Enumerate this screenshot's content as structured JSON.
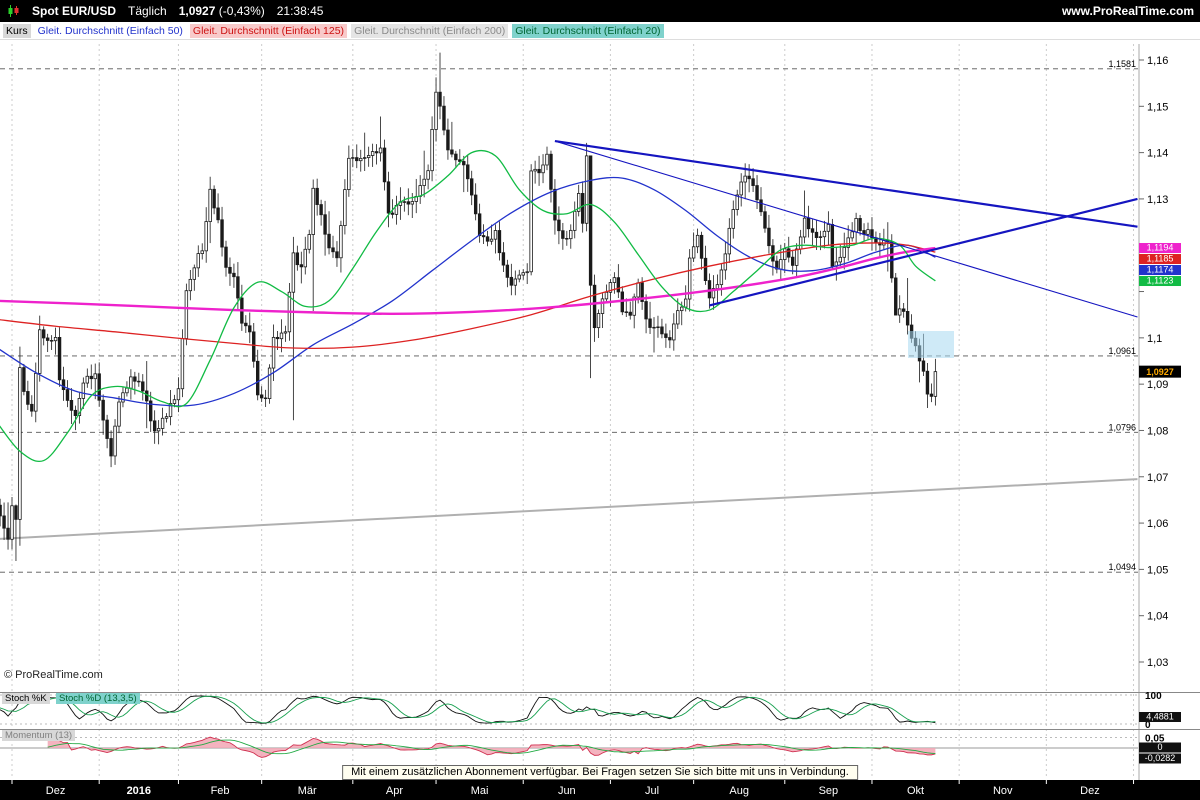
{
  "header": {
    "instrument": "Spot EUR/USD",
    "timeframe": "Täglich",
    "price": "1,0927",
    "change": "(-0,43%)",
    "time": "21:38:45",
    "website": "www.ProRealTime.com"
  },
  "branding": {
    "copyright": "© ProRealTime.com"
  },
  "legend": {
    "kurs": "Kurs",
    "items": [
      {
        "period": 50,
        "label": "Gleit. Durchschnitt (Einfach 50)",
        "color": "#2233cc",
        "bg": "#ffffff"
      },
      {
        "period": 125,
        "label": "Gleit. Durchschnitt (Einfach 125)",
        "color": "#cc1111",
        "bg": "#f8caca"
      },
      {
        "period": 200,
        "label": "Gleit. Durchschnitt (Einfach 200)",
        "color": "#8a8a8a",
        "bg": "#e4e4e4"
      },
      {
        "period": 20,
        "label": "Gleit. Durchschnitt (Einfach 20)",
        "color": "#006633",
        "bg": "#7fd2cc"
      }
    ]
  },
  "panels": {
    "stochastic": {
      "label_k": "Stoch %K",
      "label_d": "Stoch %D (13,3,5)",
      "axis_top": "100",
      "axis_bottom": "0",
      "value": 4.4881,
      "value_label": "4,4881",
      "k_color": "#111111",
      "d_color": "#18a050"
    },
    "momentum": {
      "label": "Momentum (13)",
      "axis_top": "0,05",
      "zero_label": "0",
      "value": -0.0282,
      "value_label": "-0,0282",
      "line_color": "#d03050",
      "fill_color": "#f2a6b4",
      "signal_color": "#22aa44"
    }
  },
  "footer": {
    "message": "Mit einem zusätzlichen Abonnement verfügbar. Bei Fragen setzen Sie sich bitte mit uns in Verbindung."
  },
  "chart_data": {
    "type": "candlestick",
    "title": "Spot EUR/USD Täglich",
    "period": "daily",
    "seed": 42,
    "ylim": [
      1.028,
      1.167
    ],
    "x_axis": {
      "month_start_days": [
        4,
        26,
        46,
        67,
        90,
        111,
        133,
        155,
        176,
        199,
        221,
        243,
        265,
        287
      ],
      "months": [
        {
          "label": "Dez",
          "bold": false
        },
        {
          "label": "2016",
          "bold": true
        },
        {
          "label": "Feb",
          "bold": false
        },
        {
          "label": "Mär",
          "bold": false
        },
        {
          "label": "Apr",
          "bold": false
        },
        {
          "label": "Mai",
          "bold": false
        },
        {
          "label": "Jun",
          "bold": false
        },
        {
          "label": "Jul",
          "bold": false
        },
        {
          "label": "Aug",
          "bold": false
        },
        {
          "label": "Sep",
          "bold": false
        },
        {
          "label": "Okt",
          "bold": false
        },
        {
          "label": "Nov",
          "bold": false
        },
        {
          "label": "Dez",
          "bold": false
        }
      ]
    },
    "y_axis": {
      "visible_labels": [
        {
          "v": 1.16,
          "t": "1,16"
        },
        {
          "v": 1.15,
          "t": "1,15"
        },
        {
          "v": 1.14,
          "t": "1,14"
        },
        {
          "v": 1.13,
          "t": "1,13"
        },
        {
          "v": 1.1,
          "t": "1,1"
        },
        {
          "v": 1.09,
          "t": "1,09"
        },
        {
          "v": 1.08,
          "t": "1,08"
        },
        {
          "v": 1.07,
          "t": "1,07"
        },
        {
          "v": 1.06,
          "t": "1,06"
        },
        {
          "v": 1.05,
          "t": "1,05"
        },
        {
          "v": 1.04,
          "t": "1,04"
        },
        {
          "v": 1.03,
          "t": "1,03"
        }
      ]
    },
    "levels": [
      {
        "price": 1.1581,
        "label": "1,1581"
      },
      {
        "price": 1.0961,
        "label": "1,0961"
      },
      {
        "price": 1.0796,
        "label": "1,0796"
      },
      {
        "price": 1.0494,
        "label": "1,0494"
      }
    ],
    "last_price": {
      "value": 1.0927,
      "label": "1,0927"
    },
    "price_anchors": [
      [
        0,
        1.0637
      ],
      [
        2,
        1.0593
      ],
      [
        3,
        1.0565
      ],
      [
        4,
        1.0632
      ],
      [
        5,
        1.0615
      ],
      [
        6,
        1.0941
      ],
      [
        7,
        1.0885
      ],
      [
        9,
        1.0836
      ],
      [
        11,
        1.1024
      ],
      [
        13,
        1.0988
      ],
      [
        15,
        1.0993
      ],
      [
        16,
        1.0912
      ],
      [
        18,
        1.0866
      ],
      [
        20,
        1.0827
      ],
      [
        22,
        1.0905
      ],
      [
        25,
        1.0927
      ],
      [
        26,
        1.0862
      ],
      [
        27,
        1.083
      ],
      [
        29,
        1.0746
      ],
      [
        31,
        1.086
      ],
      [
        34,
        1.0916
      ],
      [
        37,
        1.089
      ],
      [
        40,
        1.0794
      ],
      [
        43,
        1.0832
      ],
      [
        46,
        1.0889
      ],
      [
        48,
        1.1103
      ],
      [
        50,
        1.1157
      ],
      [
        52,
        1.1195
      ],
      [
        54,
        1.132
      ],
      [
        56,
        1.1254
      ],
      [
        58,
        1.1145
      ],
      [
        60,
        1.1128
      ],
      [
        62,
        1.1029
      ],
      [
        64,
        1.1011
      ],
      [
        66,
        1.0873
      ],
      [
        68,
        1.0866
      ],
      [
        70,
        1.1003
      ],
      [
        73,
        1.1011
      ],
      [
        75,
        1.1179
      ],
      [
        77,
        1.1152
      ],
      [
        79,
        1.1223
      ],
      [
        80,
        1.1317
      ],
      [
        82,
        1.127
      ],
      [
        84,
        1.1187
      ],
      [
        86,
        1.1178
      ],
      [
        88,
        1.132
      ],
      [
        89,
        1.138
      ],
      [
        91,
        1.139
      ],
      [
        93,
        1.1385
      ],
      [
        95,
        1.1401
      ],
      [
        97,
        1.1408
      ],
      [
        99,
        1.1266
      ],
      [
        101,
        1.1283
      ],
      [
        103,
        1.1289
      ],
      [
        105,
        1.1289
      ],
      [
        107,
        1.1333
      ],
      [
        109,
        1.1355
      ],
      [
        110,
        1.1452
      ],
      [
        111,
        1.153
      ],
      [
        112,
        1.1498
      ],
      [
        114,
        1.1403
      ],
      [
        116,
        1.1378
      ],
      [
        118,
        1.1376
      ],
      [
        120,
        1.1307
      ],
      [
        122,
        1.1222
      ],
      [
        124,
        1.1202
      ],
      [
        126,
        1.1224
      ],
      [
        128,
        1.115
      ],
      [
        130,
        1.1113
      ],
      [
        132,
        1.1137
      ],
      [
        134,
        1.115
      ],
      [
        135,
        1.1365
      ],
      [
        137,
        1.1359
      ],
      [
        139,
        1.1398
      ],
      [
        141,
        1.1254
      ],
      [
        143,
        1.1208
      ],
      [
        145,
        1.1226
      ],
      [
        147,
        1.1313
      ],
      [
        148,
        1.125
      ],
      [
        149,
        1.1385
      ],
      [
        150,
        1.1117
      ],
      [
        151,
        1.1024
      ],
      [
        154,
        1.1106
      ],
      [
        156,
        1.1136
      ],
      [
        158,
        1.1051
      ],
      [
        160,
        1.1046
      ],
      [
        162,
        1.1121
      ],
      [
        164,
        1.1034
      ],
      [
        166,
        1.1022
      ],
      [
        168,
        1.1013
      ],
      [
        170,
        1.0997
      ],
      [
        172,
        1.1059
      ],
      [
        174,
        1.1077
      ],
      [
        175,
        1.1176
      ],
      [
        177,
        1.1222
      ],
      [
        179,
        1.1131
      ],
      [
        180,
        1.1087
      ],
      [
        182,
        1.1117
      ],
      [
        184,
        1.1179
      ],
      [
        186,
        1.1281
      ],
      [
        189,
        1.1353
      ],
      [
        191,
        1.1327
      ],
      [
        193,
        1.1265
      ],
      [
        195,
        1.1198
      ],
      [
        197,
        1.1148
      ],
      [
        199,
        1.1197
      ],
      [
        201,
        1.1155
      ],
      [
        204,
        1.1258
      ],
      [
        206,
        1.1227
      ],
      [
        208,
        1.1222
      ],
      [
        210,
        1.1245
      ],
      [
        211,
        1.1157
      ],
      [
        213,
        1.1178
      ],
      [
        215,
        1.1208
      ],
      [
        217,
        1.1254
      ],
      [
        219,
        1.1216
      ],
      [
        220,
        1.1238
      ],
      [
        221,
        1.1213
      ],
      [
        223,
        1.1206
      ],
      [
        225,
        1.1201
      ],
      [
        227,
        1.1054
      ],
      [
        229,
        1.1057
      ],
      [
        231,
        1.0999
      ],
      [
        234,
        1.0928
      ],
      [
        235,
        1.0883
      ],
      [
        236,
        1.0875
      ],
      [
        237,
        1.0927
      ]
    ],
    "wide_range_days": [
      [
        5,
        1.064,
        1.0518
      ],
      [
        6,
        1.0981,
        1.0551
      ],
      [
        75,
        1.1218,
        1.0822
      ],
      [
        80,
        1.1342,
        1.1058
      ],
      [
        112,
        1.1616,
        1.1472
      ],
      [
        135,
        1.1375,
        1.1135
      ],
      [
        149,
        1.1421,
        1.123
      ],
      [
        150,
        1.1379,
        1.0913
      ],
      [
        227,
        1.114,
        1.1049
      ]
    ],
    "moving_averages": [
      {
        "period": 50,
        "name": "SMA 50",
        "color": "#2233cc",
        "width": 1.3,
        "value": 1.1174,
        "value_label": "1,1174",
        "points": [
          [
            0,
            1.098
          ],
          [
            10,
            1.0925
          ],
          [
            20,
            1.0885
          ],
          [
            30,
            1.087
          ],
          [
            40,
            1.0856
          ],
          [
            50,
            1.0855
          ],
          [
            60,
            1.088
          ],
          [
            70,
            1.0925
          ],
          [
            80,
            1.0985
          ],
          [
            90,
            1.103
          ],
          [
            100,
            1.108
          ],
          [
            110,
            1.1145
          ],
          [
            120,
            1.121
          ],
          [
            130,
            1.127
          ],
          [
            140,
            1.1315
          ],
          [
            150,
            1.134
          ],
          [
            158,
            1.1345
          ],
          [
            166,
            1.132
          ],
          [
            174,
            1.1275
          ],
          [
            182,
            1.122
          ],
          [
            190,
            1.1175
          ],
          [
            198,
            1.1148
          ],
          [
            206,
            1.1145
          ],
          [
            214,
            1.116
          ],
          [
            222,
            1.1185
          ],
          [
            230,
            1.12
          ],
          [
            237,
            1.1174
          ]
        ]
      },
      {
        "period": 125,
        "name": "SMA 125",
        "color": "#dd2222",
        "width": 1.3,
        "value": 1.1185,
        "value_label": "1,1185",
        "points": [
          [
            0,
            1.104
          ],
          [
            15,
            1.1025
          ],
          [
            30,
            1.1013
          ],
          [
            45,
            1.1
          ],
          [
            60,
            1.0988
          ],
          [
            75,
            1.0978
          ],
          [
            90,
            1.098
          ],
          [
            105,
            1.0995
          ],
          [
            120,
            1.102
          ],
          [
            135,
            1.105
          ],
          [
            150,
            1.109
          ],
          [
            165,
            1.1125
          ],
          [
            180,
            1.1155
          ],
          [
            195,
            1.118
          ],
          [
            210,
            1.12
          ],
          [
            222,
            1.1205
          ],
          [
            230,
            1.12
          ],
          [
            237,
            1.1185
          ]
        ]
      },
      {
        "period": 200,
        "name": "SMA 200",
        "color": "#ee22cc",
        "width": 2.4,
        "value": 1.1194,
        "value_label": "1,1194",
        "points": [
          [
            0,
            1.108
          ],
          [
            20,
            1.1074
          ],
          [
            40,
            1.1067
          ],
          [
            60,
            1.106
          ],
          [
            80,
            1.1055
          ],
          [
            100,
            1.1052
          ],
          [
            120,
            1.1056
          ],
          [
            140,
            1.1066
          ],
          [
            160,
            1.1082
          ],
          [
            180,
            1.1102
          ],
          [
            200,
            1.1128
          ],
          [
            212,
            1.115
          ],
          [
            222,
            1.1172
          ],
          [
            230,
            1.1186
          ],
          [
            237,
            1.1194
          ]
        ]
      },
      {
        "period": 20,
        "name": "SMA 20",
        "color": "#11bb44",
        "width": 1.3,
        "value": 1.1123,
        "value_label": "1,1123",
        "points": [
          [
            0,
            1.082
          ],
          [
            6,
            1.0755
          ],
          [
            12,
            1.0735
          ],
          [
            18,
            1.0795
          ],
          [
            24,
            1.0875
          ],
          [
            30,
            1.0895
          ],
          [
            36,
            1.0885
          ],
          [
            42,
            1.0862
          ],
          [
            48,
            1.0858
          ],
          [
            54,
            1.0952
          ],
          [
            60,
            1.1065
          ],
          [
            66,
            1.112
          ],
          [
            72,
            1.11
          ],
          [
            78,
            1.1068
          ],
          [
            84,
            1.108
          ],
          [
            90,
            1.115
          ],
          [
            96,
            1.123
          ],
          [
            102,
            1.1293
          ],
          [
            108,
            1.131
          ],
          [
            114,
            1.135
          ],
          [
            120,
            1.14
          ],
          [
            126,
            1.1393
          ],
          [
            132,
            1.132
          ],
          [
            138,
            1.1275
          ],
          [
            144,
            1.1268
          ],
          [
            150,
            1.1288
          ],
          [
            156,
            1.125
          ],
          [
            162,
            1.118
          ],
          [
            168,
            1.111
          ],
          [
            174,
            1.1065
          ],
          [
            180,
            1.106
          ],
          [
            186,
            1.11
          ],
          [
            192,
            1.1145
          ],
          [
            198,
            1.119
          ],
          [
            204,
            1.12
          ],
          [
            210,
            1.1195
          ],
          [
            216,
            1.12
          ],
          [
            222,
            1.1215
          ],
          [
            228,
            1.12
          ],
          [
            232,
            1.1155
          ],
          [
            237,
            1.1123
          ]
        ]
      }
    ],
    "trendlines": [
      {
        "name": "trendline-descending-major",
        "color": "#1515c0",
        "width": 2.2,
        "points": [
          [
            141,
            1.1425
          ],
          [
            288,
            1.124
          ]
        ]
      },
      {
        "name": "trendline-descending-minor",
        "color": "#1515c0",
        "width": 1.1,
        "points": [
          [
            141,
            1.1425
          ],
          [
            288,
            1.1045
          ]
        ]
      },
      {
        "name": "trendline-ascending",
        "color": "#1515c0",
        "width": 2.2,
        "points": [
          [
            180,
            1.107
          ],
          [
            288,
            1.13
          ]
        ]
      },
      {
        "name": "trendline-support-gray",
        "color": "#b0b0b0",
        "width": 2,
        "points": [
          [
            -1,
            1.0565
          ],
          [
            288,
            1.0695
          ]
        ]
      }
    ],
    "highlight_region": {
      "x": 908,
      "y": 331,
      "width": 46,
      "height": 27,
      "color": "#a8d8f0"
    }
  }
}
